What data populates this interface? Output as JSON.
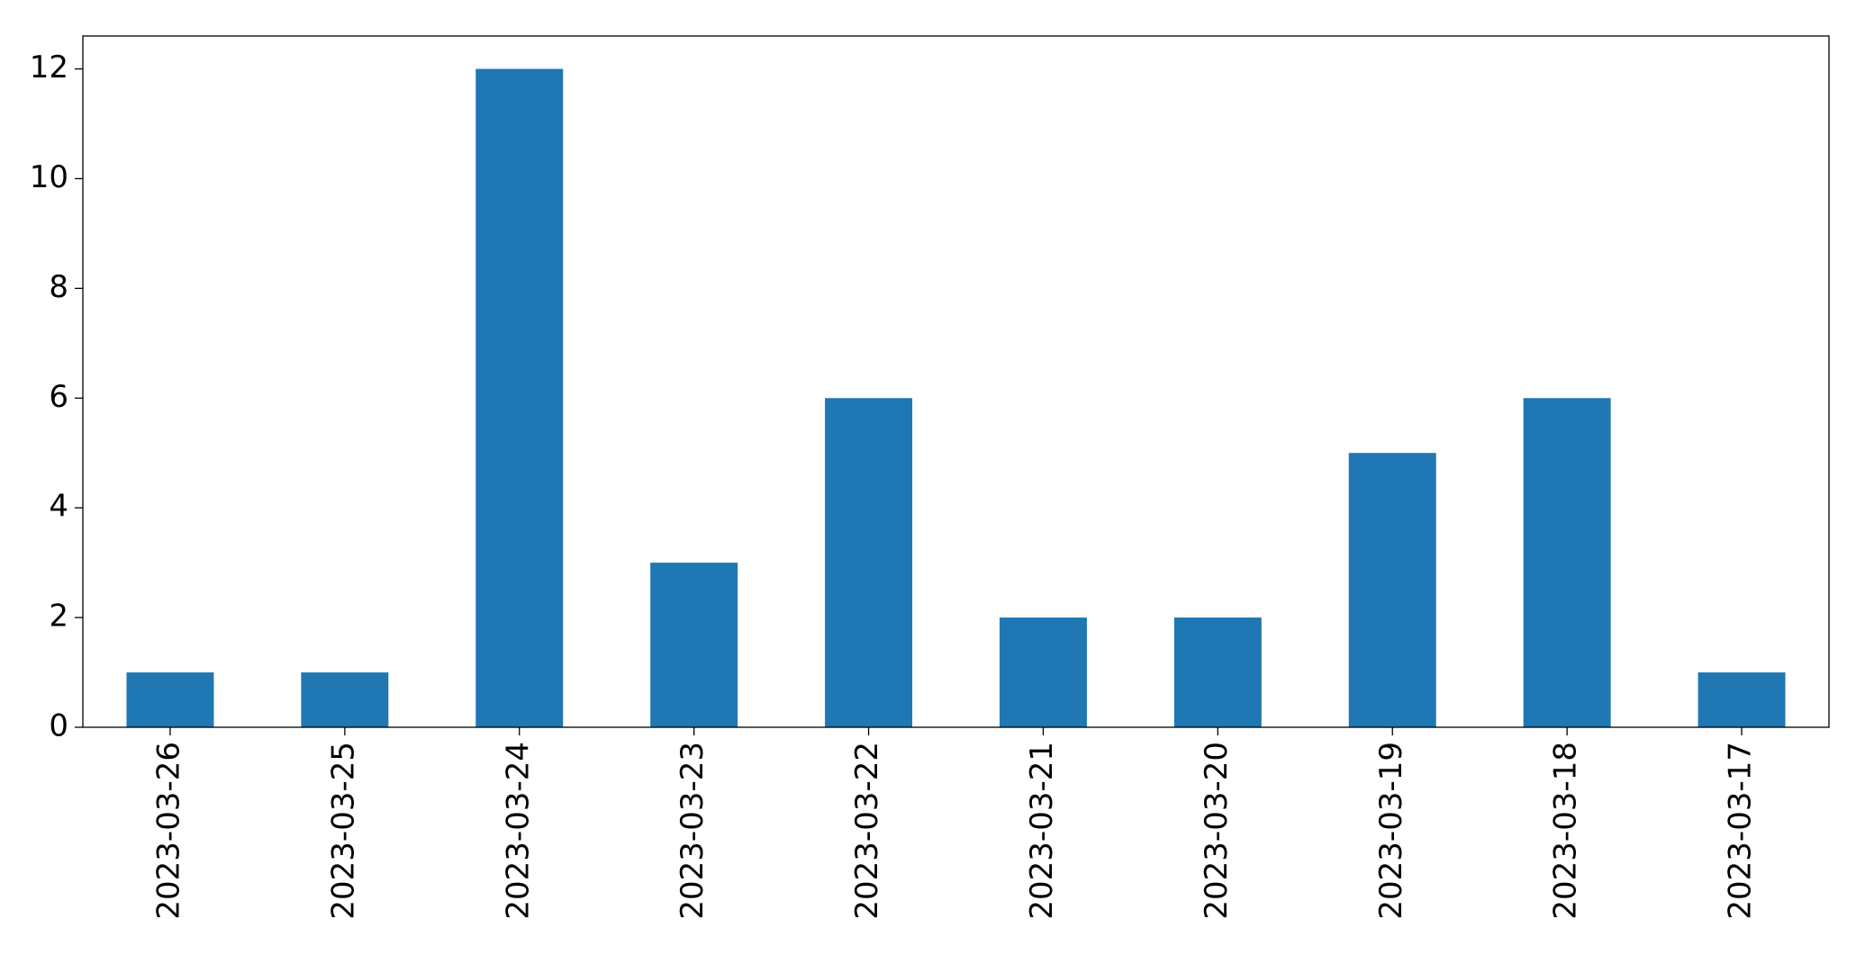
{
  "chart_data": {
    "type": "bar",
    "categories": [
      "2023-03-26",
      "2023-03-25",
      "2023-03-24",
      "2023-03-23",
      "2023-03-22",
      "2023-03-21",
      "2023-03-20",
      "2023-03-19",
      "2023-03-18",
      "2023-03-17"
    ],
    "values": [
      1,
      1,
      12,
      3,
      6,
      2,
      2,
      5,
      6,
      1
    ],
    "color": "#1f77b4",
    "ylim": [
      0,
      12.6
    ],
    "yticks": [
      0,
      2,
      4,
      6,
      8,
      10,
      12
    ],
    "grid": false
  }
}
